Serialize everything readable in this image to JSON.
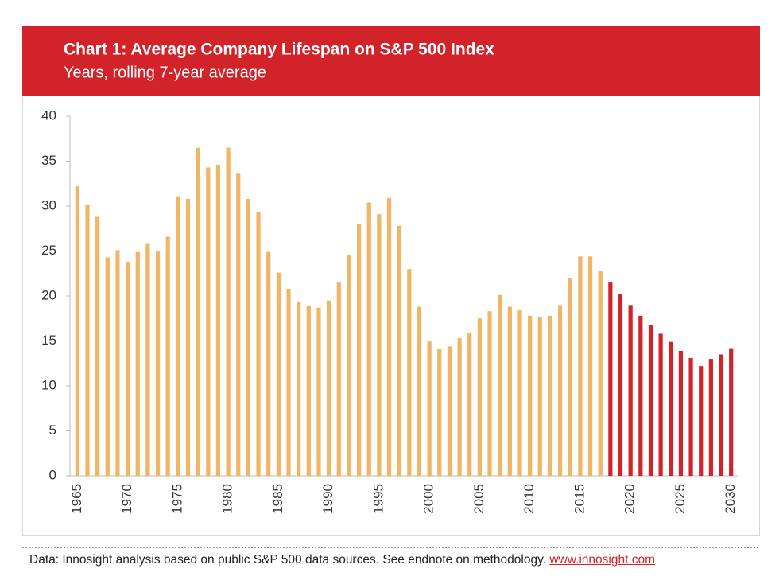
{
  "chart_data": {
    "type": "bar",
    "title": "Chart 1: Average Company Lifespan on S&P 500 Index",
    "subtitle": "Years, rolling 7-year average",
    "categories": [
      "1965",
      null,
      null,
      null,
      null,
      "1970",
      null,
      null,
      null,
      null,
      "1975",
      null,
      null,
      null,
      null,
      "1980",
      null,
      null,
      null,
      null,
      "1985",
      null,
      null,
      null,
      null,
      "1990",
      null,
      null,
      null,
      null,
      "1995",
      null,
      null,
      null,
      null,
      "2000",
      null,
      null,
      null,
      null,
      "2005",
      null,
      null,
      null,
      null,
      "2010",
      null,
      null,
      null,
      null,
      "2015",
      null,
      null,
      null,
      null,
      "2020",
      null,
      null,
      null,
      null,
      "2025",
      null,
      null,
      null,
      null,
      "2030"
    ],
    "series": [
      {
        "color": "#f0b565",
        "values": [
          32.2,
          30.1,
          28.8,
          24.3,
          25.1,
          23.8,
          24.9,
          25.8,
          25.0,
          26.6,
          31.1,
          30.8,
          36.5,
          34.3,
          34.6,
          36.5,
          33.6,
          30.8,
          29.3,
          24.9,
          22.6,
          20.8,
          19.4,
          18.9,
          18.7,
          19.5,
          21.5,
          24.6,
          28.0,
          30.4,
          29.1,
          30.9,
          27.8,
          23.0,
          18.8,
          15.0,
          14.1,
          14.4,
          15.3,
          15.9,
          17.5,
          18.3,
          20.1,
          18.8,
          18.4,
          17.8,
          17.7,
          17.8,
          19.0,
          22.0,
          24.4,
          24.4,
          22.8,
          null,
          null,
          null,
          null,
          null,
          null,
          null,
          null,
          null,
          null,
          null,
          null,
          null
        ]
      },
      {
        "color": "#d2232a",
        "values": [
          null,
          null,
          null,
          null,
          null,
          null,
          null,
          null,
          null,
          null,
          null,
          null,
          null,
          null,
          null,
          null,
          null,
          null,
          null,
          null,
          null,
          null,
          null,
          null,
          null,
          null,
          null,
          null,
          null,
          null,
          null,
          null,
          null,
          null,
          null,
          null,
          null,
          null,
          null,
          null,
          null,
          null,
          null,
          null,
          null,
          null,
          null,
          null,
          null,
          null,
          null,
          null,
          null,
          21.5,
          20.2,
          19.0,
          17.8,
          16.8,
          15.8,
          14.9,
          13.9,
          13.1,
          12.2,
          13.0,
          13.5,
          14.2
        ]
      }
    ],
    "ylim": [
      0,
      40
    ],
    "yticks": [
      0,
      5,
      10,
      15,
      20,
      25,
      30,
      35,
      40
    ],
    "source": "Data: Innosight analysis based on public S&P 500 data sources. See endnote on methodology.",
    "source_link": "www.innosight.com"
  }
}
